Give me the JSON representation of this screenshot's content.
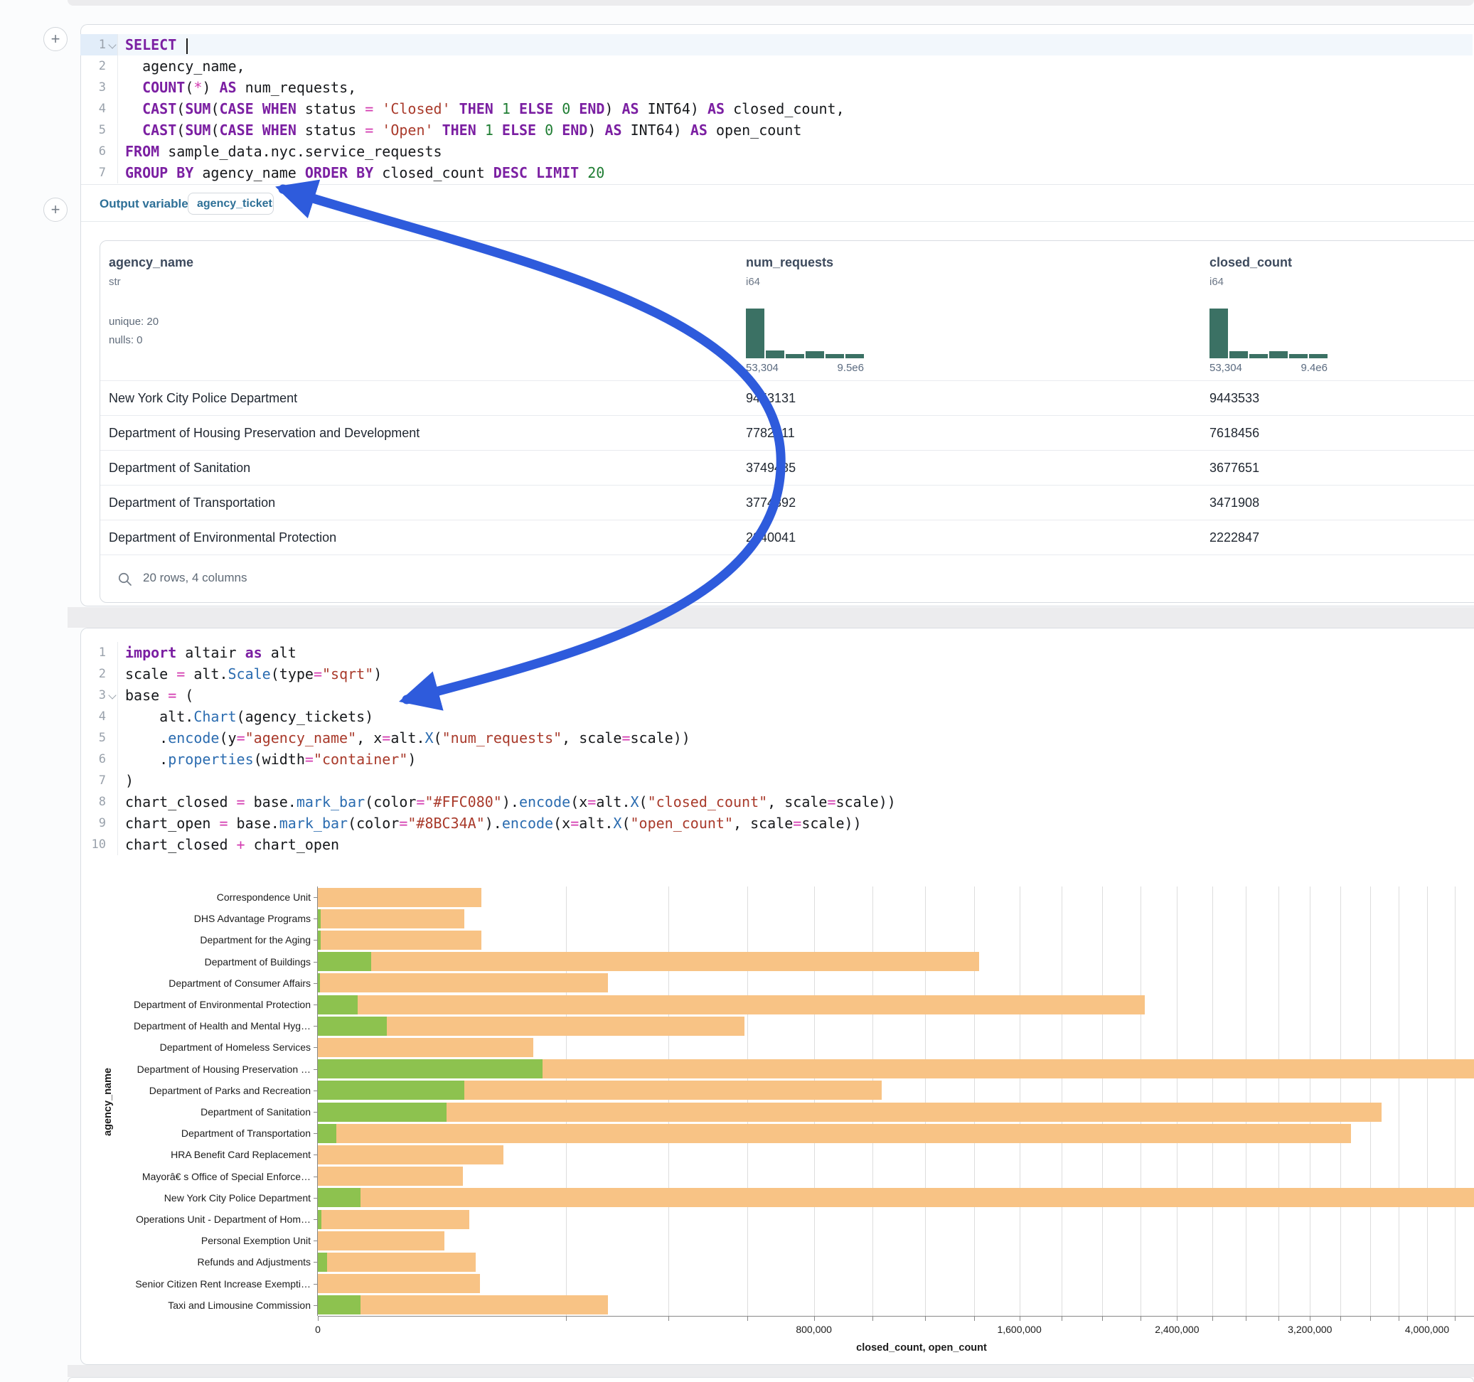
{
  "colors": {
    "arrow": "#2e5bdc",
    "hist": "#3b7164",
    "closed_bar": "#F8C385",
    "open_bar": "#8DC24F"
  },
  "sql_cell": {
    "language": "sql",
    "collapse_line": 0,
    "highlight_line": 0,
    "lines": [
      [
        {
          "t": "k",
          "s": "SELECT"
        },
        {
          "t": "p",
          "s": " "
        },
        {
          "t": "caret",
          "s": ""
        }
      ],
      [
        {
          "t": "p",
          "s": "  agency_name,"
        }
      ],
      [
        {
          "t": "p",
          "s": "  "
        },
        {
          "t": "k",
          "s": "COUNT"
        },
        {
          "t": "p",
          "s": "("
        },
        {
          "t": "o",
          "s": "*"
        },
        {
          "t": "p",
          "s": ") "
        },
        {
          "t": "k",
          "s": "AS"
        },
        {
          "t": "p",
          "s": " num_requests,"
        }
      ],
      [
        {
          "t": "p",
          "s": "  "
        },
        {
          "t": "k",
          "s": "CAST"
        },
        {
          "t": "p",
          "s": "("
        },
        {
          "t": "k",
          "s": "SUM"
        },
        {
          "t": "p",
          "s": "("
        },
        {
          "t": "k",
          "s": "CASE"
        },
        {
          "t": "p",
          "s": " "
        },
        {
          "t": "k",
          "s": "WHEN"
        },
        {
          "t": "p",
          "s": " status "
        },
        {
          "t": "o",
          "s": "="
        },
        {
          "t": "p",
          "s": " "
        },
        {
          "t": "s",
          "s": "'Closed'"
        },
        {
          "t": "p",
          "s": " "
        },
        {
          "t": "k",
          "s": "THEN"
        },
        {
          "t": "p",
          "s": " "
        },
        {
          "t": "n",
          "s": "1"
        },
        {
          "t": "p",
          "s": " "
        },
        {
          "t": "k",
          "s": "ELSE"
        },
        {
          "t": "p",
          "s": " "
        },
        {
          "t": "n",
          "s": "0"
        },
        {
          "t": "p",
          "s": " "
        },
        {
          "t": "k",
          "s": "END"
        },
        {
          "t": "p",
          "s": ") "
        },
        {
          "t": "k",
          "s": "AS"
        },
        {
          "t": "p",
          "s": " INT64) "
        },
        {
          "t": "k",
          "s": "AS"
        },
        {
          "t": "p",
          "s": " closed_count,"
        }
      ],
      [
        {
          "t": "p",
          "s": "  "
        },
        {
          "t": "k",
          "s": "CAST"
        },
        {
          "t": "p",
          "s": "("
        },
        {
          "t": "k",
          "s": "SUM"
        },
        {
          "t": "p",
          "s": "("
        },
        {
          "t": "k",
          "s": "CASE"
        },
        {
          "t": "p",
          "s": " "
        },
        {
          "t": "k",
          "s": "WHEN"
        },
        {
          "t": "p",
          "s": " status "
        },
        {
          "t": "o",
          "s": "="
        },
        {
          "t": "p",
          "s": " "
        },
        {
          "t": "s",
          "s": "'Open'"
        },
        {
          "t": "p",
          "s": " "
        },
        {
          "t": "k",
          "s": "THEN"
        },
        {
          "t": "p",
          "s": " "
        },
        {
          "t": "n",
          "s": "1"
        },
        {
          "t": "p",
          "s": " "
        },
        {
          "t": "k",
          "s": "ELSE"
        },
        {
          "t": "p",
          "s": " "
        },
        {
          "t": "n",
          "s": "0"
        },
        {
          "t": "p",
          "s": " "
        },
        {
          "t": "k",
          "s": "END"
        },
        {
          "t": "p",
          "s": ") "
        },
        {
          "t": "k",
          "s": "AS"
        },
        {
          "t": "p",
          "s": " INT64) "
        },
        {
          "t": "k",
          "s": "AS"
        },
        {
          "t": "p",
          "s": " open_count"
        }
      ],
      [
        {
          "t": "k",
          "s": "FROM"
        },
        {
          "t": "p",
          "s": " sample_data.nyc.service_requests"
        }
      ],
      [
        {
          "t": "k",
          "s": "GROUP BY"
        },
        {
          "t": "p",
          "s": " agency_name "
        },
        {
          "t": "k",
          "s": "ORDER BY"
        },
        {
          "t": "p",
          "s": " closed_count "
        },
        {
          "t": "k",
          "s": "DESC"
        },
        {
          "t": "p",
          "s": " "
        },
        {
          "t": "k",
          "s": "LIMIT"
        },
        {
          "t": "p",
          "s": " "
        },
        {
          "t": "n",
          "s": "20"
        }
      ]
    ]
  },
  "output_bar": {
    "label": "Output variable:",
    "pill": "agency_tickets"
  },
  "table": {
    "columns": [
      {
        "name": "agency_name",
        "type": "str",
        "stats": [
          "unique: 20",
          "nulls: 0"
        ]
      },
      {
        "name": "num_requests",
        "type": "i64",
        "hist": [
          100,
          16,
          8,
          14,
          8,
          8
        ],
        "hist_min": "53,304",
        "hist_max": "9.5e6"
      },
      {
        "name": "closed_count",
        "type": "i64",
        "hist": [
          100,
          15,
          8,
          14,
          8,
          8
        ],
        "hist_min": "53,304",
        "hist_max": "9.4e6"
      }
    ],
    "rows": [
      [
        "New York City Police Department",
        "9453131",
        "9443533"
      ],
      [
        "Department of Housing Preservation and Development",
        "7782211",
        "7618456"
      ],
      [
        "Department of Sanitation",
        "3749485",
        "3677651"
      ],
      [
        "Department of Transportation",
        "3774892",
        "3471908"
      ],
      [
        "Department of Environmental Protection",
        "2240041",
        "2222847"
      ]
    ],
    "footer": "20 rows, 4 columns"
  },
  "python_cell": {
    "language": "python",
    "collapse_line": 2,
    "lines": [
      [
        {
          "t": "k",
          "s": "import"
        },
        {
          "t": "p",
          "s": " altair "
        },
        {
          "t": "k",
          "s": "as"
        },
        {
          "t": "p",
          "s": " alt"
        }
      ],
      [
        {
          "t": "p",
          "s": "scale "
        },
        {
          "t": "o",
          "s": "="
        },
        {
          "t": "p",
          "s": " alt."
        },
        {
          "t": "f",
          "s": "Scale"
        },
        {
          "t": "p",
          "s": "(type"
        },
        {
          "t": "o",
          "s": "="
        },
        {
          "t": "s",
          "s": "\"sqrt\""
        },
        {
          "t": "p",
          "s": ")"
        }
      ],
      [
        {
          "t": "p",
          "s": "base "
        },
        {
          "t": "o",
          "s": "="
        },
        {
          "t": "p",
          "s": " ("
        }
      ],
      [
        {
          "t": "p",
          "s": "    alt."
        },
        {
          "t": "f",
          "s": "Chart"
        },
        {
          "t": "p",
          "s": "(agency_tickets)"
        }
      ],
      [
        {
          "t": "p",
          "s": "    ."
        },
        {
          "t": "f",
          "s": "encode"
        },
        {
          "t": "p",
          "s": "(y"
        },
        {
          "t": "o",
          "s": "="
        },
        {
          "t": "s",
          "s": "\"agency_name\""
        },
        {
          "t": "p",
          "s": ", x"
        },
        {
          "t": "o",
          "s": "="
        },
        {
          "t": "p",
          "s": "alt."
        },
        {
          "t": "f",
          "s": "X"
        },
        {
          "t": "p",
          "s": "("
        },
        {
          "t": "s",
          "s": "\"num_requests\""
        },
        {
          "t": "p",
          "s": ", scale"
        },
        {
          "t": "o",
          "s": "="
        },
        {
          "t": "p",
          "s": "scale))"
        }
      ],
      [
        {
          "t": "p",
          "s": "    ."
        },
        {
          "t": "f",
          "s": "properties"
        },
        {
          "t": "p",
          "s": "(width"
        },
        {
          "t": "o",
          "s": "="
        },
        {
          "t": "s",
          "s": "\"container\""
        },
        {
          "t": "p",
          "s": ")"
        }
      ],
      [
        {
          "t": "p",
          "s": ")"
        }
      ],
      [
        {
          "t": "p",
          "s": "chart_closed "
        },
        {
          "t": "o",
          "s": "="
        },
        {
          "t": "p",
          "s": " base."
        },
        {
          "t": "f",
          "s": "mark_bar"
        },
        {
          "t": "p",
          "s": "(color"
        },
        {
          "t": "o",
          "s": "="
        },
        {
          "t": "s",
          "s": "\"#FFC080\""
        },
        {
          "t": "p",
          "s": ")."
        },
        {
          "t": "f",
          "s": "encode"
        },
        {
          "t": "p",
          "s": "(x"
        },
        {
          "t": "o",
          "s": "="
        },
        {
          "t": "p",
          "s": "alt."
        },
        {
          "t": "f",
          "s": "X"
        },
        {
          "t": "p",
          "s": "("
        },
        {
          "t": "s",
          "s": "\"closed_count\""
        },
        {
          "t": "p",
          "s": ", scale"
        },
        {
          "t": "o",
          "s": "="
        },
        {
          "t": "p",
          "s": "scale))"
        }
      ],
      [
        {
          "t": "p",
          "s": "chart_open "
        },
        {
          "t": "o",
          "s": "="
        },
        {
          "t": "p",
          "s": " base."
        },
        {
          "t": "f",
          "s": "mark_bar"
        },
        {
          "t": "p",
          "s": "(color"
        },
        {
          "t": "o",
          "s": "="
        },
        {
          "t": "s",
          "s": "\"#8BC34A\""
        },
        {
          "t": "p",
          "s": ")."
        },
        {
          "t": "f",
          "s": "encode"
        },
        {
          "t": "p",
          "s": "(x"
        },
        {
          "t": "o",
          "s": "="
        },
        {
          "t": "p",
          "s": "alt."
        },
        {
          "t": "f",
          "s": "X"
        },
        {
          "t": "p",
          "s": "("
        },
        {
          "t": "s",
          "s": "\"open_count\""
        },
        {
          "t": "p",
          "s": ", scale"
        },
        {
          "t": "o",
          "s": "="
        },
        {
          "t": "p",
          "s": "scale))"
        }
      ],
      [
        {
          "t": "p",
          "s": "chart_closed "
        },
        {
          "t": "o",
          "s": "+"
        },
        {
          "t": "p",
          "s": " chart_open"
        }
      ]
    ]
  },
  "chart_data": {
    "type": "bar",
    "orientation": "horizontal",
    "x_scale": "sqrt",
    "title": "",
    "xlabel": "closed_count, open_count",
    "ylabel": "agency_name",
    "categories": [
      "Correspondence Unit",
      "DHS Advantage Programs",
      "Department for the Aging",
      "Department of Buildings",
      "Department of Consumer Affairs",
      "Department of Environmental Protection",
      "Department of Health and Mental Hyg…",
      "Department of Homeless Services",
      "Department of Housing Preservation …",
      "Department of Parks and Recreation",
      "Department of Sanitation",
      "Department of Transportation",
      "HRA Benefit Card Replacement",
      "Mayorâ€ s Office of Special Enforce…",
      "New York City Police Department",
      "Operations Unit - Department of Hom…",
      "Personal Exemption Unit",
      "Refunds and Adjustments",
      "Senior Citizen Rent Increase Exempti…",
      "Taxi and Limousine Commission"
    ],
    "series": [
      {
        "name": "closed_count",
        "color": "#F8C385",
        "values": [
          87000,
          70000,
          87000,
          1423000,
          273000,
          2222847,
          592000,
          151000,
          7618456,
          1034000,
          3677651,
          3471908,
          112000,
          68700,
          9443533,
          74400,
          52300,
          81000,
          85700,
          273100
        ]
      },
      {
        "name": "open_count",
        "color": "#8DC24F",
        "values": [
          0,
          30,
          30,
          9200,
          20,
          5200,
          15500,
          0,
          163755,
          70000,
          54000,
          1100,
          0,
          0,
          6000,
          40,
          0,
          270,
          0,
          5900
        ]
      }
    ],
    "x_ticks": [
      {
        "v": 0,
        "label": "0"
      },
      {
        "v": 800000,
        "label": "800,000"
      },
      {
        "v": 1600000,
        "label": "1,600,000"
      },
      {
        "v": 2400000,
        "label": "2,400,000"
      },
      {
        "v": 3200000,
        "label": "3,200,000"
      },
      {
        "v": 4000000,
        "label": "4,000,000"
      }
    ],
    "minor_tick_step": 200000,
    "grid_max": 4200000,
    "grid": true,
    "legend": "none"
  }
}
